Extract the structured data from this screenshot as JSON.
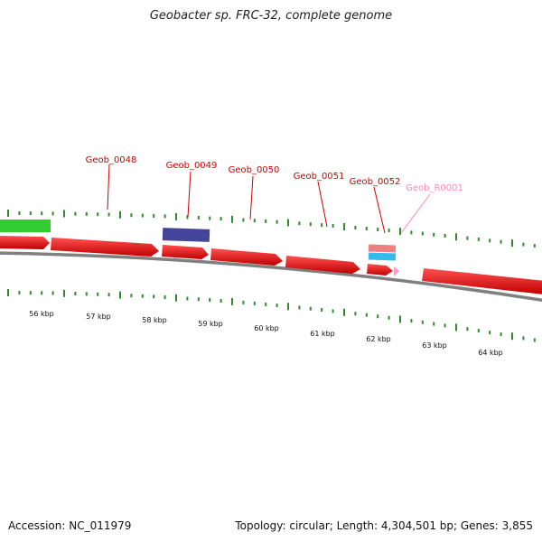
{
  "title": "Geobacter sp. FRC-32, complete genome",
  "footer": {
    "accession": "Accession: NC_011979",
    "summary": "Topology: circular; Length: 4,304,501 bp; Genes: 3,855"
  },
  "colors": {
    "cds": "#ff0000",
    "gene_label": "#cc0000",
    "rna_label": "#ff88bb",
    "rrna": "#f08080",
    "trna": "#33bbee",
    "misc_green": "#33cc33",
    "misc_purple": "#44449a",
    "tick": "#2e8b2e",
    "backbone": "#808080"
  },
  "tick_labels": [
    "56 kbp",
    "57 kbp",
    "58 kbp",
    "59 kbp",
    "60 kbp",
    "61 kbp",
    "62 kbp",
    "63 kbp",
    "64 kbp"
  ],
  "gene_labels": [
    "Geob_0048",
    "Geob_0049",
    "Geob_0050",
    "Geob_0051",
    "Geob_0052",
    "Geob_R0001"
  ]
}
